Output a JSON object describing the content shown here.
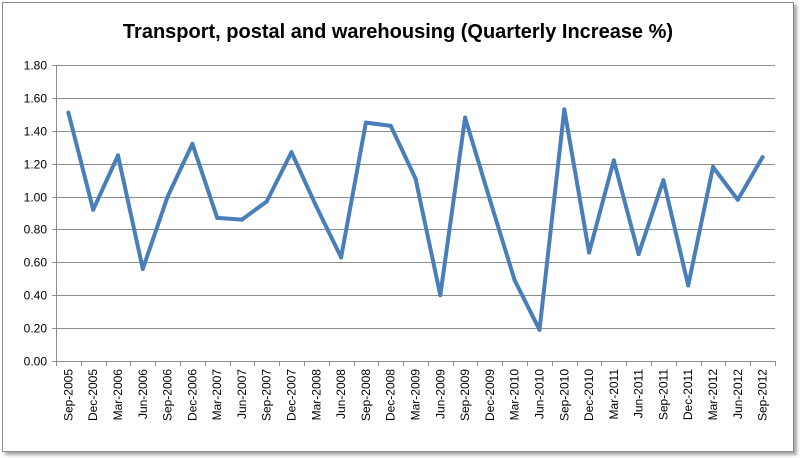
{
  "chart_data": {
    "type": "line",
    "title": "Transport, postal and warehousing (Quarterly Increase %)",
    "xlabel": "",
    "ylabel": "",
    "ylim": [
      0,
      1.8
    ],
    "yticks": [
      "0.00",
      "0.20",
      "0.40",
      "0.60",
      "0.80",
      "1.00",
      "1.20",
      "1.40",
      "1.60",
      "1.80"
    ],
    "grid": true,
    "legend": "none",
    "categories": [
      "Sep-2005",
      "Dec-2005",
      "Mar-2006",
      "Jun-2006",
      "Sep-2006",
      "Dec-2006",
      "Mar-2007",
      "Jun-2007",
      "Sep-2007",
      "Dec-2007",
      "Mar-2008",
      "Jun-2008",
      "Sep-2008",
      "Dec-2008",
      "Mar-2009",
      "Jun-2009",
      "Sep-2009",
      "Dec-2009",
      "Mar-2010",
      "Jun-2010",
      "Sep-2010",
      "Dec-2010",
      "Mar-2011",
      "Jun-2011",
      "Sep-2011",
      "Dec-2011",
      "Mar-2012",
      "Jun-2012",
      "Sep-2012"
    ],
    "series": [
      {
        "name": "Quarterly Increase %",
        "color": "#4a7ebb",
        "values": [
          1.51,
          0.92,
          1.25,
          0.56,
          1.0,
          1.32,
          0.87,
          0.86,
          0.97,
          1.27,
          0.94,
          0.63,
          1.45,
          1.43,
          1.11,
          0.4,
          1.48,
          0.98,
          0.49,
          0.19,
          1.53,
          0.66,
          1.22,
          0.65,
          1.1,
          0.46,
          1.18,
          0.98,
          1.24
        ]
      }
    ]
  }
}
